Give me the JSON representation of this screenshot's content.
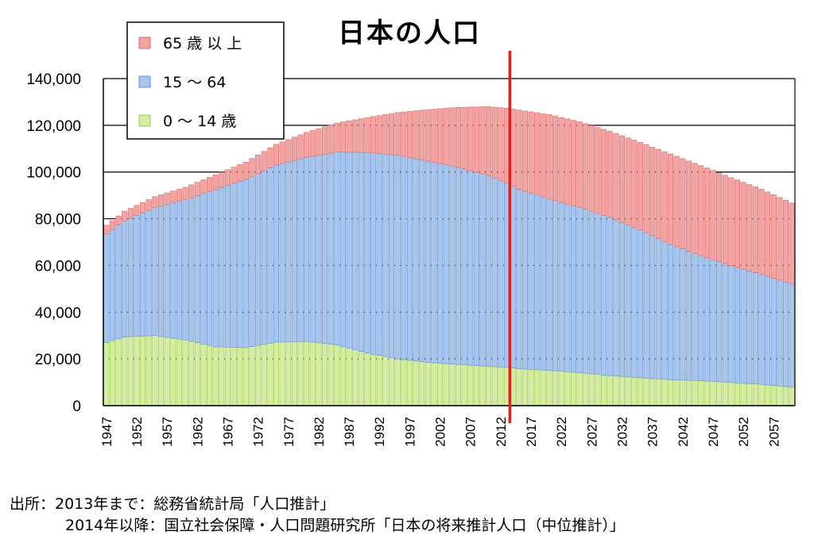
{
  "title": "日本の人口",
  "source": {
    "line1": "出所：2013年まで：総務省統計局「人口推計」",
    "line2": "2014年以降：国立社会保障・人口問題研究所「日本の将来推計人口（中位推計）」"
  },
  "colors": {
    "elderly": "#f4a3a3",
    "working": "#a9c5ec",
    "young": "#d4ed9e",
    "elderly_edge": "#d86a6a",
    "working_edge": "#5f8fd0",
    "young_edge": "#9cc65a",
    "divider": "#e0201c"
  },
  "chart_data": {
    "type": "bar",
    "stacked": true,
    "title": "日本の人口",
    "x_start": 1947,
    "x_end": 2060,
    "xticks": [
      "1947",
      "1952",
      "1957",
      "1962",
      "1967",
      "1972",
      "1977",
      "1982",
      "1987",
      "1992",
      "1997",
      "2002",
      "2007",
      "2012",
      "2017",
      "2022",
      "2027",
      "2032",
      "2037",
      "2042",
      "2047",
      "2052",
      "2057"
    ],
    "yticks": [
      "0",
      "20,000",
      "40,000",
      "60,000",
      "80,000",
      "100,000",
      "120,000",
      "140,000"
    ],
    "ylim": [
      0,
      140000
    ],
    "grid": true,
    "divider_year": 2013,
    "legend_position": "top-left",
    "series": [
      {
        "name": "65 歳 以 上",
        "key": "elderly",
        "anchors": [
          [
            1947,
            3700
          ],
          [
            1950,
            4100
          ],
          [
            1955,
            4750
          ],
          [
            1960,
            5350
          ],
          [
            1965,
            6200
          ],
          [
            1970,
            7350
          ],
          [
            1975,
            8850
          ],
          [
            1980,
            10650
          ],
          [
            1985,
            12450
          ],
          [
            1990,
            14900
          ],
          [
            1995,
            18250
          ],
          [
            2000,
            22000
          ],
          [
            2005,
            25700
          ],
          [
            2010,
            29500
          ],
          [
            2013,
            31900
          ],
          [
            2015,
            33950
          ],
          [
            2020,
            36100
          ],
          [
            2025,
            36600
          ],
          [
            2030,
            36850
          ],
          [
            2035,
            37400
          ],
          [
            2040,
            38700
          ],
          [
            2045,
            38550
          ],
          [
            2050,
            37700
          ],
          [
            2055,
            36450
          ],
          [
            2060,
            34650
          ]
        ]
      },
      {
        "name": "15 ～ 64",
        "key": "working",
        "anchors": [
          [
            1947,
            46500
          ],
          [
            1950,
            49700
          ],
          [
            1955,
            54700
          ],
          [
            1960,
            60000
          ],
          [
            1965,
            67400
          ],
          [
            1970,
            72100
          ],
          [
            1975,
            75800
          ],
          [
            1980,
            78800
          ],
          [
            1985,
            82500
          ],
          [
            1990,
            85900
          ],
          [
            1995,
            87200
          ],
          [
            2000,
            86200
          ],
          [
            2005,
            84400
          ],
          [
            2010,
            81700
          ],
          [
            2013,
            79000
          ],
          [
            2015,
            76800
          ],
          [
            2020,
            73400
          ],
          [
            2025,
            70800
          ],
          [
            2030,
            67700
          ],
          [
            2035,
            63400
          ],
          [
            2040,
            57900
          ],
          [
            2045,
            53500
          ],
          [
            2050,
            50000
          ],
          [
            2055,
            47100
          ],
          [
            2060,
            44200
          ]
        ]
      },
      {
        "name": "0 ～ 14 歳",
        "key": "young",
        "anchors": [
          [
            1947,
            27000
          ],
          [
            1950,
            29400
          ],
          [
            1955,
            30000
          ],
          [
            1960,
            28100
          ],
          [
            1965,
            25200
          ],
          [
            1970,
            24800
          ],
          [
            1975,
            27200
          ],
          [
            1980,
            27500
          ],
          [
            1985,
            26000
          ],
          [
            1990,
            22500
          ],
          [
            1995,
            20000
          ],
          [
            2000,
            18500
          ],
          [
            2005,
            17600
          ],
          [
            2010,
            16800
          ],
          [
            2013,
            16400
          ],
          [
            2015,
            15800
          ],
          [
            2020,
            15100
          ],
          [
            2025,
            14100
          ],
          [
            2030,
            12900
          ],
          [
            2035,
            11900
          ],
          [
            2040,
            11100
          ],
          [
            2045,
            10700
          ],
          [
            2050,
            9900
          ],
          [
            2055,
            9100
          ],
          [
            2060,
            7900
          ]
        ]
      }
    ]
  }
}
